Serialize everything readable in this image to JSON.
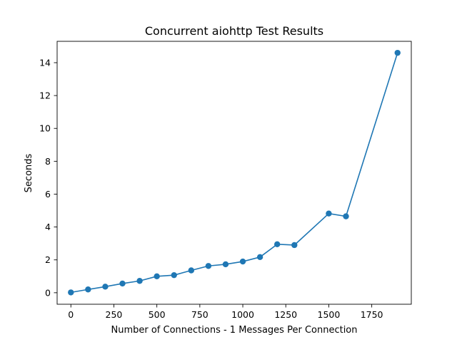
{
  "chart_data": {
    "type": "line",
    "title": "Concurrent aiohttp Test Results",
    "xlabel": "Number of Connections - 1 Messages Per Connection",
    "ylabel": "Seconds",
    "xlim": [
      -80,
      1980
    ],
    "ylim": [
      -0.7,
      15.3
    ],
    "x_ticks": [
      0,
      250,
      500,
      750,
      1000,
      1250,
      1500,
      1750
    ],
    "y_ticks": [
      0,
      2,
      4,
      6,
      8,
      10,
      12,
      14
    ],
    "grid": false,
    "color": "#1f77b4",
    "series": [
      {
        "x": [
          0,
          100,
          200,
          300,
          400,
          500,
          600,
          700,
          800,
          900,
          1000,
          1100,
          1200,
          1300,
          1500,
          1600,
          1900
        ],
        "y": [
          0.02,
          0.2,
          0.37,
          0.56,
          0.72,
          1.0,
          1.07,
          1.36,
          1.63,
          1.73,
          1.9,
          2.17,
          2.95,
          2.9,
          4.82,
          4.65,
          14.6
        ]
      }
    ]
  }
}
